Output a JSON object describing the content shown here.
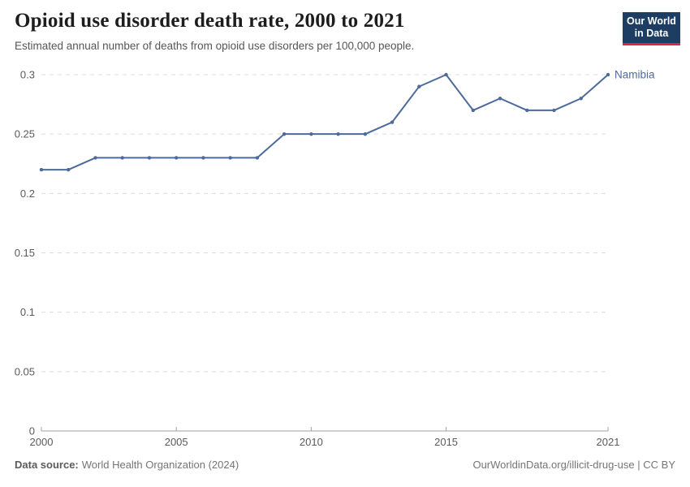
{
  "header": {
    "title": "Opioid use disorder death rate, 2000 to 2021",
    "subtitle": "Estimated annual number of deaths from opioid use disorders per 100,000 people.",
    "logo": {
      "line1": "Our World",
      "line2": "in Data",
      "bg_color": "#1d3d63",
      "accent_color": "#cf3038",
      "text_color": "#ffffff"
    }
  },
  "chart_data": {
    "type": "line",
    "title": "Opioid use disorder death rate, 2000 to 2021",
    "xlabel": "",
    "ylabel": "",
    "x": [
      2000,
      2001,
      2002,
      2003,
      2004,
      2005,
      2006,
      2007,
      2008,
      2009,
      2010,
      2011,
      2012,
      2013,
      2014,
      2015,
      2016,
      2017,
      2018,
      2019,
      2020,
      2021
    ],
    "series": [
      {
        "name": "Namibia",
        "color": "#4c6a9c",
        "values": [
          0.22,
          0.22,
          0.23,
          0.23,
          0.23,
          0.23,
          0.23,
          0.23,
          0.23,
          0.25,
          0.25,
          0.25,
          0.25,
          0.26,
          0.29,
          0.3,
          0.27,
          0.28,
          0.27,
          0.27,
          0.28,
          0.3
        ]
      }
    ],
    "xlim": [
      2000,
      2021
    ],
    "ylim": [
      0,
      0.3
    ],
    "xticks": [
      2000,
      2005,
      2010,
      2015,
      2021
    ],
    "yticks": [
      0,
      0.05,
      0.1,
      0.15,
      0.2,
      0.25,
      0.3
    ],
    "grid": "horizontal-dashed",
    "legend_position": "line-end-label",
    "grid_color": "#dcdcdc",
    "axis_color": "#a1a1a1",
    "tick_label_color": "#5b5b5b"
  },
  "footer": {
    "data_source_label": "Data source:",
    "data_source_value": "World Health Organization (2024)",
    "url_text": "OurWorldinData.org/illicit-drug-use",
    "separator": "|",
    "license_text": "CC BY"
  }
}
